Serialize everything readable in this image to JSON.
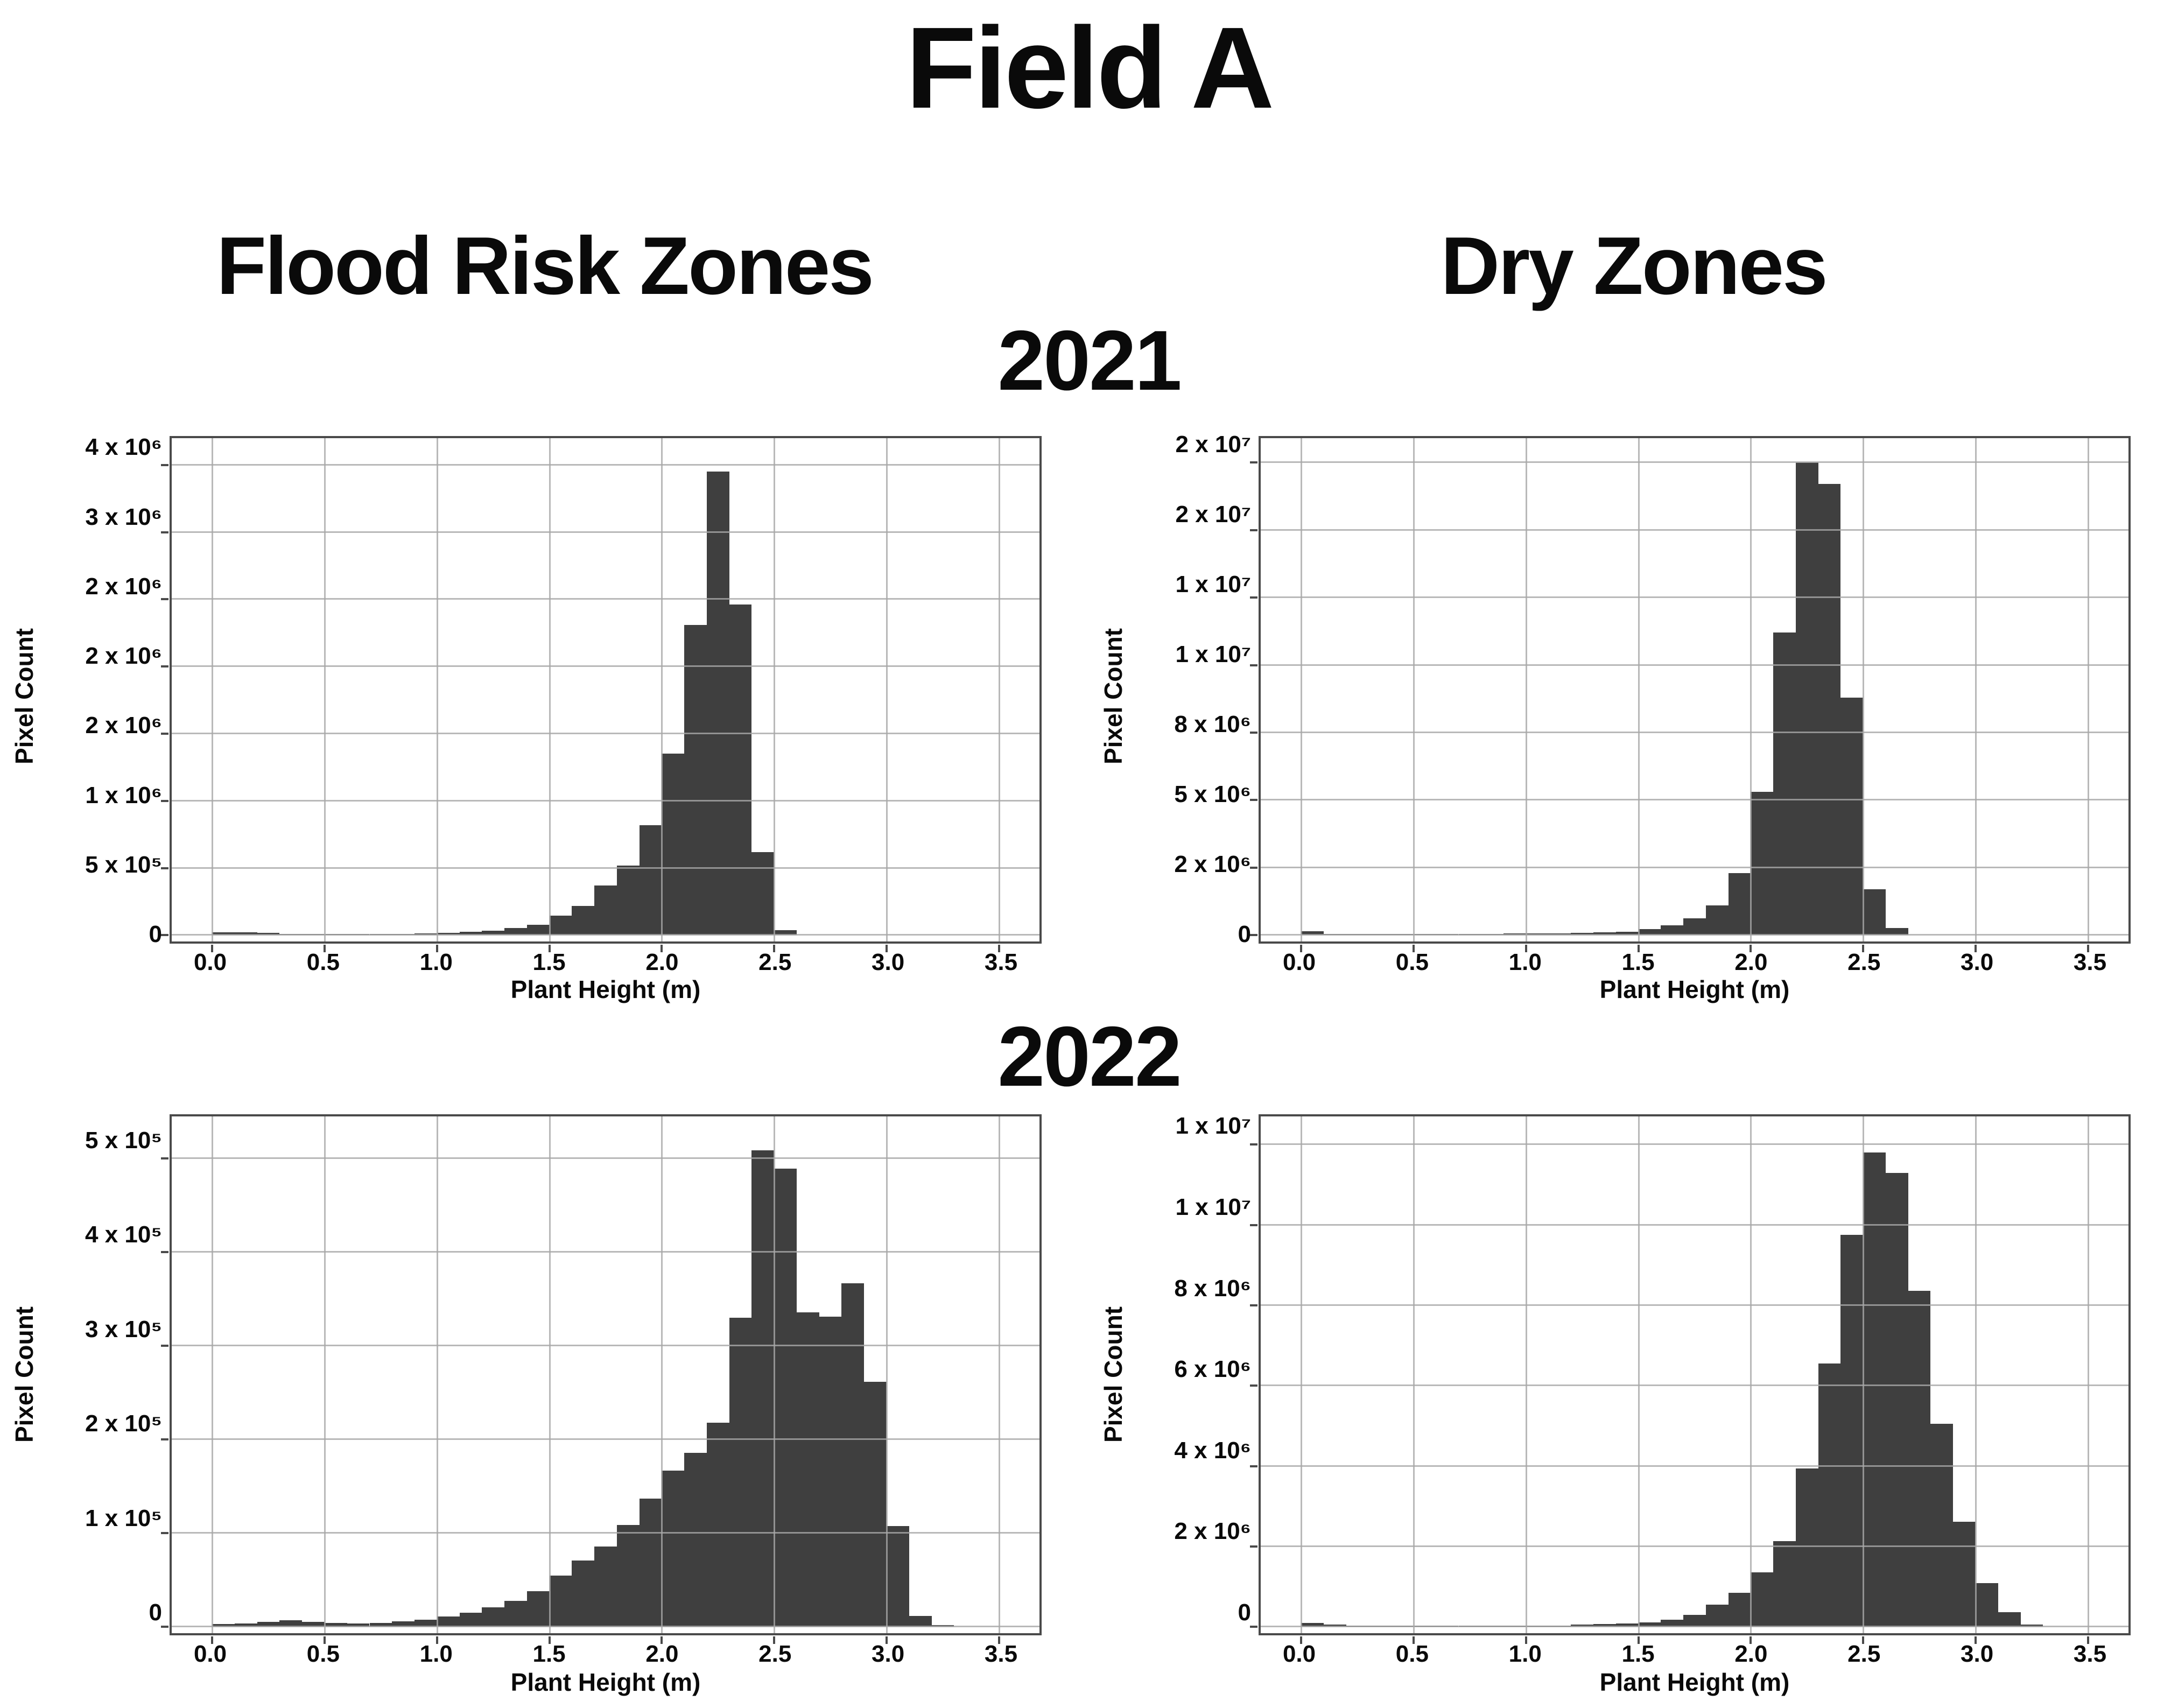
{
  "page": {
    "title": "Field A",
    "column_headers": [
      "Flood Risk Zones",
      "Dry Zones"
    ],
    "year_labels": [
      "2021",
      "2022"
    ]
  },
  "colors": {
    "bar_fill": "#3f3f3f",
    "gridline": "#a8a8a8",
    "spine": "#4a4a4a",
    "background": "#ffffff",
    "text": "#0a0a0a"
  },
  "chart_data": [
    {
      "id": "flood-risk-zones-2021",
      "type": "bar",
      "subtype": "histogram",
      "zone": "Flood Risk Zones",
      "year": "2021",
      "xlabel": "Plant Height (m)",
      "ylabel": "Pixel Count",
      "grid": true,
      "legend_position": "none",
      "x_tick_labels": [
        "0.0",
        "0.5",
        "1.0",
        "1.5",
        "2.0",
        "2.5",
        "3.0",
        "3.5"
      ],
      "x_tick_values": [
        0,
        0.5,
        1,
        1.5,
        2,
        2.5,
        3,
        3.5
      ],
      "xlim": [
        -0.18,
        3.68
      ],
      "y_tick_labels": [
        "0",
        "5 x 10⁵",
        "1 x 10⁶",
        "2 x 10⁶",
        "2 x 10⁶",
        "2 x 10⁶",
        "3 x 10⁶",
        "4 x 10⁶"
      ],
      "y_tick_values": [
        0,
        500000,
        1000000,
        1500000,
        2000000,
        2500000,
        3000000,
        3500000
      ],
      "ylim": [
        0,
        3700000
      ],
      "bin_start": 0.0,
      "bin_width": 0.1,
      "values": [
        20000,
        22000,
        18000,
        8000,
        5000,
        5000,
        6000,
        8000,
        10000,
        14000,
        18000,
        25000,
        32000,
        53000,
        79000,
        145000,
        216000,
        370000,
        520000,
        820000,
        1350000,
        2310000,
        3450000,
        2460000,
        620000,
        36000
      ]
    },
    {
      "id": "dry-zones-2021",
      "type": "bar",
      "subtype": "histogram",
      "zone": "Dry Zones",
      "year": "2021",
      "xlabel": "Plant Height (m)",
      "ylabel": "Pixel Count",
      "grid": true,
      "legend_position": "none",
      "x_tick_labels": [
        "0.0",
        "0.5",
        "1.0",
        "1.5",
        "2.0",
        "2.5",
        "3.0",
        "3.5"
      ],
      "x_tick_values": [
        0,
        0.5,
        1,
        1.5,
        2,
        2.5,
        3,
        3.5
      ],
      "xlim": [
        -0.18,
        3.68
      ],
      "y_tick_labels": [
        "0",
        "2 x 10⁶",
        "5 x 10⁶",
        "8 x 10⁶",
        "1 x 10⁷",
        "1 x 10⁷",
        "2 x 10⁷",
        "2 x 10⁷"
      ],
      "y_tick_values": [
        0,
        2500000,
        5000000,
        7500000,
        10000000,
        12500000,
        15000000,
        17500000
      ],
      "ylim": [
        0,
        18400000
      ],
      "bin_start": 0.0,
      "bin_width": 0.1,
      "values": [
        150000,
        50000,
        40000,
        40000,
        30000,
        30000,
        40000,
        40000,
        50000,
        60000,
        60000,
        70000,
        80000,
        100000,
        130000,
        220000,
        360000,
        630000,
        1100000,
        2300000,
        5300000,
        11200000,
        17500000,
        16700000,
        8800000,
        1700000,
        270000
      ]
    },
    {
      "id": "flood-risk-zones-2022",
      "type": "bar",
      "subtype": "histogram",
      "zone": "Flood Risk Zones",
      "year": "2022",
      "xlabel": "Plant Height (m)",
      "ylabel": "Pixel Count",
      "grid": true,
      "legend_position": "none",
      "x_tick_labels": [
        "0.0",
        "0.5",
        "1.0",
        "1.5",
        "2.0",
        "2.5",
        "3.0",
        "3.5"
      ],
      "x_tick_values": [
        0,
        0.5,
        1,
        1.5,
        2,
        2.5,
        3,
        3.5
      ],
      "xlim": [
        -0.18,
        3.68
      ],
      "y_tick_labels": [
        "0",
        "1 x 10⁵",
        "2 x 10⁵",
        "3 x 10⁵",
        "4 x 10⁵",
        "5 x 10⁵"
      ],
      "y_tick_values": [
        0,
        100000,
        200000,
        300000,
        400000,
        500000
      ],
      "ylim": [
        0,
        545000
      ],
      "bin_start": 0.0,
      "bin_width": 0.1,
      "values": [
        3000,
        4000,
        5500,
        7000,
        5500,
        4500,
        4000,
        4500,
        6000,
        8000,
        11000,
        15000,
        21000,
        28000,
        38000,
        55000,
        71000,
        86000,
        109000,
        137000,
        167000,
        186000,
        218000,
        330000,
        509000,
        489000,
        336000,
        331000,
        367000,
        262000,
        108000,
        12000,
        2000
      ]
    },
    {
      "id": "dry-zones-2022",
      "type": "bar",
      "subtype": "histogram",
      "zone": "Dry Zones",
      "year": "2022",
      "xlabel": "Plant Height (m)",
      "ylabel": "Pixel Count",
      "grid": true,
      "legend_position": "none",
      "x_tick_labels": [
        "0.0",
        "0.5",
        "1.0",
        "1.5",
        "2.0",
        "2.5",
        "3.0",
        "3.5"
      ],
      "x_tick_values": [
        0,
        0.5,
        1,
        1.5,
        2,
        2.5,
        3,
        3.5
      ],
      "xlim": [
        -0.18,
        3.68
      ],
      "y_tick_labels": [
        "0",
        "2 x 10⁶",
        "4 x 10⁶",
        "6 x 10⁶",
        "8 x 10⁶",
        "1 x 10⁷",
        "1 x 10⁷"
      ],
      "y_tick_values": [
        0,
        2000000,
        4000000,
        6000000,
        8000000,
        10000000,
        12000000
      ],
      "ylim": [
        0,
        12700000
      ],
      "bin_start": 0.0,
      "bin_width": 0.1,
      "values": [
        100000,
        60000,
        20000,
        20000,
        20000,
        20000,
        20000,
        20000,
        20000,
        20000,
        20000,
        20000,
        60000,
        70000,
        90000,
        120000,
        180000,
        300000,
        550000,
        850000,
        1360000,
        2140000,
        3950000,
        6560000,
        9750000,
        11800000,
        11300000,
        8360000,
        5060000,
        2620000,
        1090000,
        370000,
        60000
      ]
    }
  ]
}
